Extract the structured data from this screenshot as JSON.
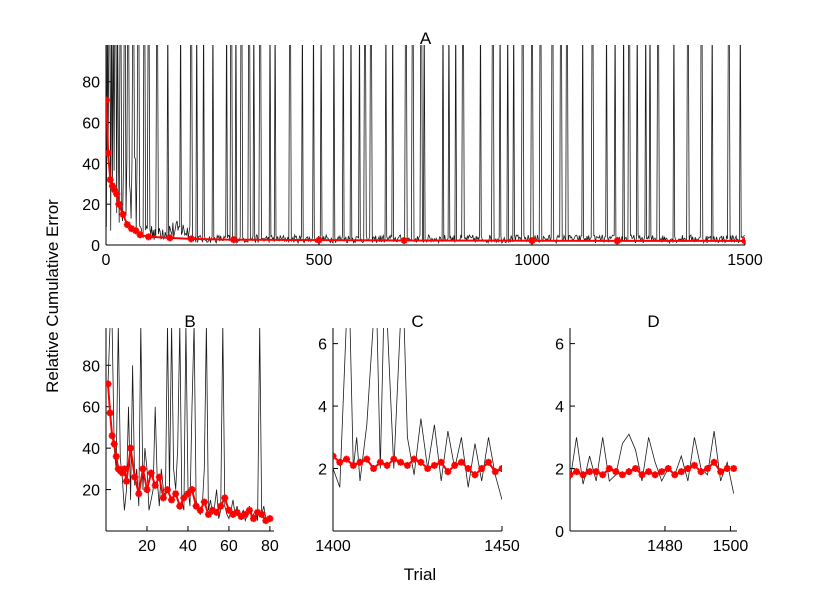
{
  "figure": {
    "ylabel": "Relative Cumulative Error",
    "xlabel": "Trial"
  },
  "colors": {
    "raw_series": "#1a1a1a",
    "mean_series": "#ff0000"
  },
  "chart_data": [
    {
      "id": "A",
      "type": "line",
      "title": "A",
      "xlim": [
        0,
        1500
      ],
      "ylim": [
        0,
        98
      ],
      "xticks": [
        0,
        500,
        1000,
        1500
      ],
      "yticks": [
        0,
        20,
        40,
        60,
        80
      ],
      "raw": {
        "description_values": "trial-by-trial error, mostly 1-5 with frequent spikes beyond 98",
        "spike_trials": [
          3,
          8,
          13,
          17,
          22,
          27,
          34,
          44,
          52,
          64,
          76,
          90,
          100,
          120,
          145,
          175,
          200,
          213,
          229,
          251,
          283,
          294,
          305,
          318,
          336,
          347,
          362,
          385,
          397,
          432,
          461,
          487,
          505,
          535,
          557,
          575,
          595,
          608,
          622,
          657,
          673,
          704,
          720,
          740,
          747,
          791,
          805,
          821,
          838,
          879,
          908,
          925,
          943,
          957,
          978,
          1000,
          1020,
          1048,
          1068,
          1082,
          1119,
          1142,
          1175,
          1195,
          1215,
          1228,
          1247,
          1267,
          1277,
          1296,
          1333,
          1366,
          1398,
          1423,
          1462,
          1489
        ]
      },
      "mean": {
        "x": [
          1,
          5,
          10,
          15,
          20,
          25,
          30,
          40,
          50,
          60,
          70,
          80,
          100,
          150,
          200,
          300,
          500,
          700,
          1000,
          1200,
          1500
        ],
        "y": [
          71,
          45,
          32,
          29,
          27,
          25,
          20,
          15,
          10,
          8,
          7,
          5,
          4,
          3.5,
          3,
          2.6,
          2.4,
          2.2,
          2.1,
          2.0,
          2.0
        ]
      }
    },
    {
      "id": "B",
      "type": "line",
      "title": "B",
      "xlim": [
        0,
        82
      ],
      "ylim": [
        0,
        98
      ],
      "xticks": [
        20,
        40,
        60,
        80
      ],
      "yticks": [
        20,
        40,
        60,
        80
      ],
      "raw": {
        "x": [
          1,
          2,
          3,
          4,
          5,
          6,
          7,
          8,
          9,
          10,
          11,
          12,
          13,
          14,
          15,
          16,
          17,
          18,
          19,
          20,
          21,
          22,
          23,
          24,
          25,
          26,
          27,
          28,
          29,
          30,
          31,
          32,
          33,
          34,
          35,
          36,
          37,
          38,
          39,
          40,
          41,
          42,
          43,
          44,
          45,
          46,
          47,
          48,
          49,
          50,
          51,
          52,
          53,
          54,
          55,
          56,
          57,
          58,
          59,
          60,
          61,
          62,
          63,
          64,
          65,
          66,
          67,
          68,
          69,
          70,
          71,
          72,
          73,
          74,
          75,
          76,
          77,
          78,
          79,
          80
        ],
        "y": [
          71,
          100,
          100,
          40,
          30,
          100,
          35,
          25,
          10,
          20,
          60,
          15,
          80,
          22,
          30,
          12,
          100,
          20,
          40,
          30,
          10,
          15,
          20,
          60,
          25,
          12,
          30,
          20,
          15,
          100,
          20,
          100,
          30,
          20,
          40,
          100,
          15,
          10,
          100,
          20,
          12,
          60,
          100,
          15,
          10,
          8,
          12,
          30,
          100,
          10,
          15,
          8,
          12,
          20,
          6,
          10,
          100,
          12,
          8,
          6,
          10,
          15,
          8,
          12,
          6,
          8,
          10,
          5,
          8,
          12,
          6,
          8,
          10,
          5,
          100,
          8,
          12,
          6,
          5,
          6
        ]
      },
      "mean": {
        "x": [
          1,
          2,
          3,
          4,
          5,
          6,
          7,
          8,
          9,
          10,
          12,
          14,
          16,
          18,
          20,
          22,
          24,
          26,
          28,
          30,
          32,
          34,
          36,
          38,
          40,
          42,
          44,
          46,
          48,
          50,
          52,
          54,
          56,
          58,
          60,
          62,
          64,
          66,
          68,
          70,
          72,
          74,
          76,
          78,
          80
        ],
        "y": [
          71,
          57,
          46,
          42,
          36,
          30,
          29,
          28,
          30,
          24,
          40,
          26,
          18,
          30,
          20,
          28,
          22,
          26,
          16,
          20,
          15,
          18,
          12,
          16,
          18,
          20,
          12,
          10,
          14,
          8,
          10,
          9,
          12,
          16,
          10,
          8,
          9,
          7,
          8,
          10,
          6,
          9,
          8,
          5,
          6
        ]
      }
    },
    {
      "id": "C",
      "type": "line",
      "title": "C",
      "xlim": [
        1400,
        1450
      ],
      "ylim": [
        0,
        6.5
      ],
      "xticks": [
        1400,
        1450
      ],
      "yticks": [
        2,
        4,
        6
      ],
      "raw": {
        "x": [
          1400,
          1402,
          1404,
          1405,
          1406,
          1407,
          1408,
          1410,
          1412,
          1413,
          1414,
          1415,
          1416,
          1418,
          1420,
          1421,
          1422,
          1423,
          1424,
          1426,
          1428,
          1430,
          1432,
          1434,
          1436,
          1438,
          1440,
          1442,
          1444,
          1446,
          1448,
          1450
        ],
        "y": [
          2.0,
          1.4,
          6.8,
          6.8,
          2.0,
          3.0,
          1.6,
          3.4,
          6.8,
          6.8,
          2.0,
          6.8,
          6.8,
          2.0,
          6.8,
          6.8,
          3.0,
          2.4,
          1.8,
          3.6,
          2.0,
          3.4,
          1.6,
          3.2,
          2.0,
          3.0,
          1.4,
          2.8,
          1.6,
          3.0,
          1.8,
          1.0
        ]
      },
      "mean": {
        "x": [
          1400,
          1402,
          1404,
          1406,
          1408,
          1410,
          1412,
          1414,
          1416,
          1418,
          1420,
          1422,
          1424,
          1426,
          1428,
          1430,
          1432,
          1434,
          1436,
          1438,
          1440,
          1442,
          1444,
          1446,
          1448,
          1450
        ],
        "y": [
          2.4,
          2.2,
          2.3,
          2.1,
          2.2,
          2.3,
          2.0,
          2.2,
          2.1,
          2.3,
          2.2,
          2.1,
          2.3,
          2.2,
          2.0,
          2.1,
          2.2,
          1.9,
          2.1,
          2.2,
          2.0,
          1.8,
          2.0,
          2.2,
          1.9,
          2.0
        ]
      }
    },
    {
      "id": "D",
      "type": "line",
      "title": "D",
      "xlim": [
        1451,
        1502
      ],
      "ylim": [
        0,
        6.5
      ],
      "xticks": [
        1480,
        1500
      ],
      "yticks": [
        0,
        2,
        4,
        6
      ],
      "raw": {
        "x": [
          1451,
          1453,
          1455,
          1457,
          1459,
          1461,
          1463,
          1465,
          1467,
          1469,
          1471,
          1473,
          1475,
          1477,
          1479,
          1481,
          1483,
          1485,
          1487,
          1489,
          1491,
          1493,
          1495,
          1497,
          1499,
          1501
        ],
        "y": [
          1.6,
          3.0,
          1.5,
          2.4,
          1.6,
          3.0,
          1.6,
          1.8,
          2.8,
          3.1,
          2.6,
          1.6,
          3.0,
          2.2,
          1.6,
          2.0,
          1.8,
          2.4,
          1.6,
          3.0,
          2.0,
          1.8,
          3.2,
          1.6,
          2.2,
          1.2
        ]
      },
      "mean": {
        "x": [
          1451,
          1453,
          1455,
          1457,
          1459,
          1461,
          1463,
          1465,
          1467,
          1469,
          1471,
          1473,
          1475,
          1477,
          1479,
          1481,
          1483,
          1485,
          1487,
          1489,
          1491,
          1493,
          1495,
          1497,
          1499,
          1501
        ],
        "y": [
          1.8,
          1.9,
          1.8,
          1.9,
          1.9,
          1.8,
          2.0,
          1.9,
          1.8,
          1.9,
          2.0,
          1.8,
          1.9,
          1.8,
          1.9,
          2.0,
          1.8,
          1.9,
          2.0,
          2.1,
          1.9,
          2.0,
          2.2,
          1.9,
          2.0,
          2.0
        ]
      }
    }
  ]
}
